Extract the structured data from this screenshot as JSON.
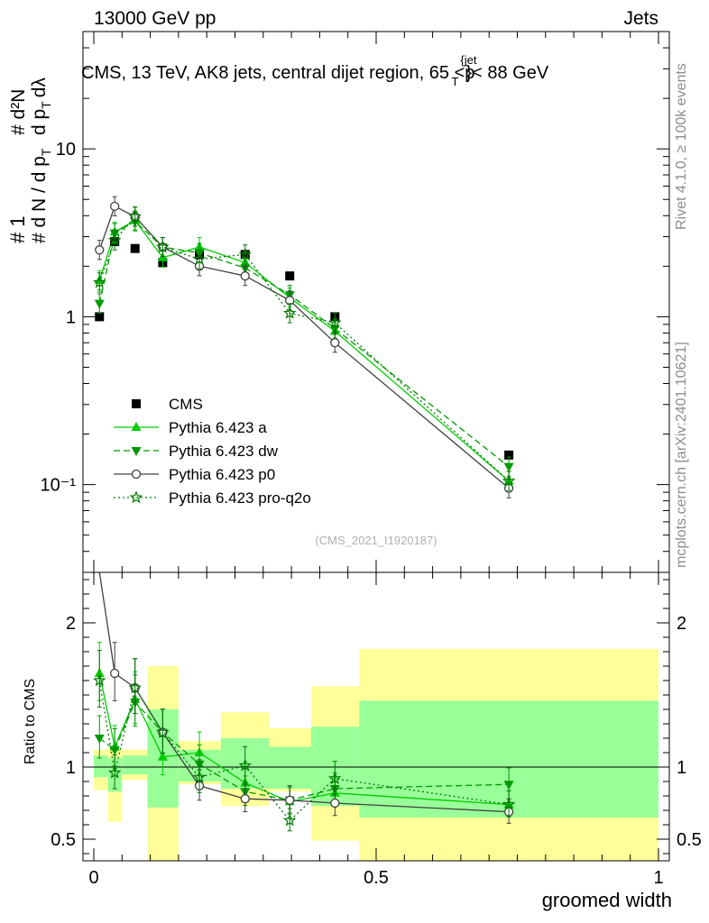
{
  "header": {
    "left": "13000 GeV pp",
    "right": "Jets"
  },
  "plot_title": "CMS, 13 TeV, AK8 jets, central dijet region, 65 <p",
  "plot_title_sup": "{jet",
  "plot_title_sub": "T",
  "plot_title_end": "}< 88 GeV",
  "side_labels": {
    "rivet": "Rivet 4.1.0, ≥ 100k events",
    "mcplots": "mcplots.cern.ch [arXiv:2401.10621]"
  },
  "analysis_id": "(CMS_2021_I1920187)",
  "y_axis_main": {
    "line1": "# 1",
    "line2": "# d N / d p",
    "line2_sub": "T",
    "line3": "# d²N",
    "line4": "d p",
    "line4_sub": "T",
    "line4_end": "dλ"
  },
  "y_axis_ratio": "Ratio to CMS",
  "x_axis": "groomed width",
  "colors": {
    "cms": "#000000",
    "a": "#00cc00",
    "dw": "#009900",
    "p0": "#404040",
    "proq2o": "#007700",
    "band_outer": "#ffff99",
    "band_inner": "#99ff99"
  },
  "chart_data": [
    {
      "type": "scatter",
      "panel": "main",
      "yscale": "log",
      "xlim": [
        -0.02,
        1.0
      ],
      "ylim": [
        0.03,
        50
      ],
      "x_ticks": [
        "0",
        "0.5",
        "1"
      ],
      "y_ticks": [
        "10⁻¹",
        "1",
        "10"
      ],
      "x": [
        0.01,
        0.037,
        0.073,
        0.122,
        0.187,
        0.268,
        0.347,
        0.427,
        0.735
      ],
      "series": [
        {
          "name": "CMS",
          "style": "square",
          "values": [
            1.0,
            2.8,
            2.55,
            2.1,
            2.35,
            2.35,
            1.75,
            1.0,
            0.15
          ]
        },
        {
          "name": "Pythia 6.423 a",
          "style": "triangle-up",
          "values": [
            1.65,
            3.2,
            3.75,
            2.25,
            2.6,
            2.1,
            1.3,
            0.82,
            0.105
          ]
        },
        {
          "name": "Pythia 6.423 dw",
          "style": "triangle-down",
          "values": [
            1.2,
            3.15,
            3.7,
            2.6,
            2.4,
            1.95,
            1.35,
            0.85,
            0.128
          ]
        },
        {
          "name": "Pythia 6.423 p0",
          "style": "open-circle",
          "values": [
            2.5,
            4.55,
            3.95,
            2.6,
            2.0,
            1.75,
            1.25,
            0.7,
            0.095
          ]
        },
        {
          "name": "Pythia 6.423 pro-q2o",
          "style": "star",
          "values": [
            1.6,
            2.85,
            3.95,
            2.6,
            2.2,
            2.35,
            1.05,
            0.92,
            0.105
          ]
        }
      ]
    },
    {
      "type": "line",
      "panel": "ratio",
      "xlim": [
        -0.02,
        1.0
      ],
      "ylim": [
        0.35,
        2.35
      ],
      "y_ticks": [
        "0.5",
        "1",
        "2"
      ],
      "x": [
        0.01,
        0.037,
        0.073,
        0.122,
        0.187,
        0.268,
        0.347,
        0.427,
        0.735
      ],
      "bands": {
        "edges": [
          0.0,
          0.025,
          0.05,
          0.095,
          0.15,
          0.225,
          0.31,
          0.385,
          0.47,
          1.0
        ],
        "outer_low": [
          0.84,
          0.62,
          0.91,
          0.35,
          0.88,
          0.73,
          0.83,
          0.49,
          0.35
        ],
        "outer_high": [
          1.12,
          1.13,
          1.12,
          1.7,
          1.18,
          1.38,
          1.27,
          1.56,
          1.82
        ],
        "inner_low": [
          0.93,
          0.83,
          0.95,
          0.72,
          0.9,
          0.85,
          0.85,
          0.73,
          0.65
        ],
        "inner_high": [
          1.08,
          1.06,
          1.08,
          1.4,
          1.12,
          1.2,
          1.14,
          1.28,
          1.46
        ]
      },
      "series": [
        {
          "name": "Pythia 6.423 a",
          "values": [
            1.65,
            1.14,
            1.47,
            1.07,
            1.1,
            0.89,
            0.76,
            0.82,
            0.74
          ]
        },
        {
          "name": "Pythia 6.423 dw",
          "values": [
            1.2,
            1.12,
            1.45,
            1.24,
            1.02,
            0.83,
            0.77,
            0.85,
            0.88
          ]
        },
        {
          "name": "Pythia 6.423 p0",
          "values": [
            2.45,
            1.65,
            1.55,
            1.24,
            0.87,
            0.78,
            0.77,
            0.75,
            0.69
          ]
        },
        {
          "name": "Pythia 6.423 pro-q2o",
          "values": [
            1.6,
            0.96,
            1.55,
            1.24,
            0.93,
            1.01,
            0.63,
            0.92,
            0.74
          ]
        }
      ]
    }
  ],
  "legend": [
    {
      "label": "CMS"
    },
    {
      "label": "Pythia 6.423 a"
    },
    {
      "label": "Pythia 6.423 dw"
    },
    {
      "label": "Pythia 6.423 p0"
    },
    {
      "label": "Pythia 6.423 pro-q2o"
    }
  ]
}
